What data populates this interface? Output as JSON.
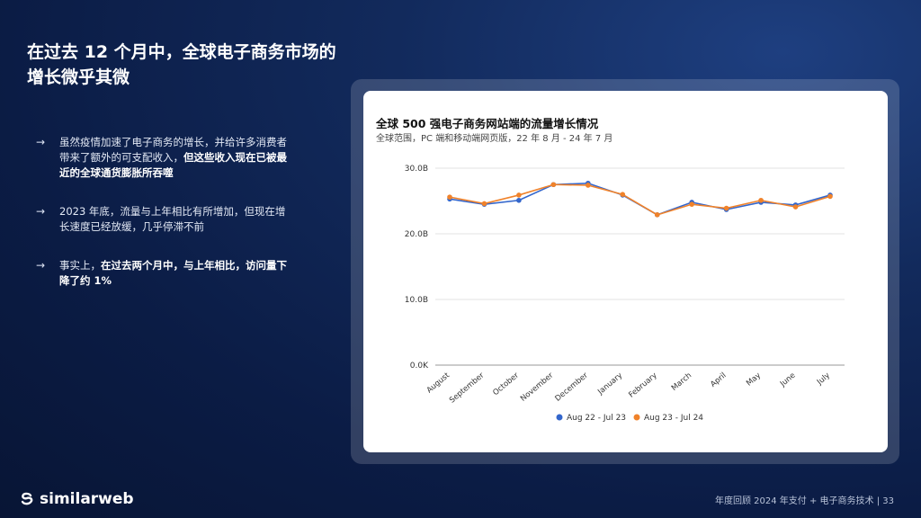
{
  "slide": {
    "title": "在过去 12 个月中，全球电子商务市场的增长微乎其微"
  },
  "bullets": [
    {
      "plain": "虽然疫情加速了电子商务的增长，并给许多消费者带来了额外的可支配收入，",
      "bold": "但这些收入现在已被最近的全球通货膨胀所吞噬"
    },
    {
      "plain": "2023 年底，流量与上年相比有所增加，但现在增长速度已经放缓，几乎停滞不前",
      "bold": ""
    },
    {
      "plain": "事实上，",
      "bold": "在过去两个月中，与上年相比，访问量下降了约 1%"
    }
  ],
  "bullet_arrow": "→",
  "chart_data": {
    "type": "line",
    "title": "全球 500 强电子商务网站端的流量增长情况",
    "subtitle": "全球范围，PC 端和移动端网页版，22 年 8 月 - 24 年 7 月",
    "categories": [
      "August",
      "September",
      "October",
      "November",
      "December",
      "January",
      "February",
      "March",
      "April",
      "May",
      "June",
      "July"
    ],
    "yticks": [
      "0.0K",
      "10.0B",
      "20.0B",
      "30.0B"
    ],
    "ylim": [
      0,
      30
    ],
    "grid": true,
    "legend_position": "bottom",
    "series": [
      {
        "name": "Aug 22 - Jul 23",
        "color": "#3366cc",
        "values": [
          25.3,
          24.5,
          25.1,
          27.5,
          27.7,
          25.9,
          22.9,
          24.8,
          23.7,
          24.8,
          24.4,
          25.9
        ]
      },
      {
        "name": "Aug 23 - Jul 24",
        "color": "#f0822a",
        "values": [
          25.6,
          24.6,
          25.9,
          27.5,
          27.4,
          26.0,
          22.9,
          24.5,
          23.9,
          25.1,
          24.1,
          25.7
        ]
      }
    ]
  },
  "footer": {
    "brand": "similarweb",
    "text": "年度回顾 2024 年支付 + 电子商务技术 | 33"
  }
}
